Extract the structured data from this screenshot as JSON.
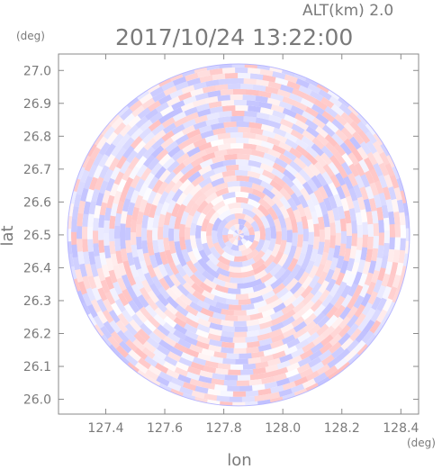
{
  "chart_data": {
    "type": "heatmap",
    "subtype": "polar radar plan-position-indicator",
    "header": {
      "altitude": "ALT(km) 2.0",
      "timestamp": "2017/10/24 13:22:00"
    },
    "xlabel": "lon",
    "ylabel": "lat",
    "x_unit": "(deg)",
    "y_unit": "(deg)",
    "xlim": [
      127.24,
      128.46
    ],
    "ylim": [
      25.955,
      27.05
    ],
    "x_ticks": [
      "127.4",
      "127.6",
      "127.8",
      "128.0",
      "128.2",
      "128.4"
    ],
    "y_ticks": [
      "26.0",
      "26.1",
      "26.2",
      "26.3",
      "26.4",
      "26.5",
      "26.6",
      "26.7",
      "26.8",
      "26.9",
      "27.0"
    ],
    "radar_center": {
      "lon": 127.85,
      "lat": 26.5
    },
    "radar_radius_lat_deg": 0.52,
    "color_scale": {
      "negative": "#8c8cff",
      "zero": "#ffffff",
      "positive": "#ff8c8c"
    },
    "grid": false,
    "legend": "none"
  }
}
